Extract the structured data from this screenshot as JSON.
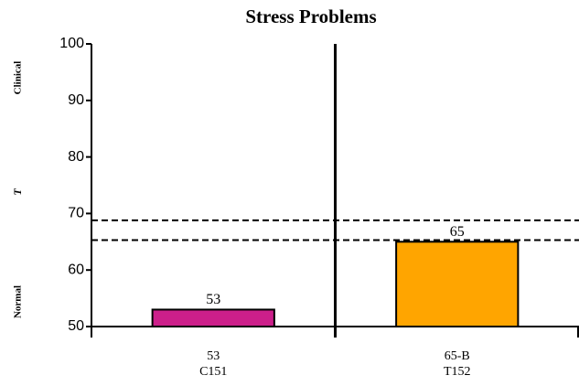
{
  "chart_data": {
    "type": "bar",
    "title": "Stress Problems",
    "y_side_labels": [
      "Clinical",
      "T",
      "Normal"
    ],
    "categories": [
      "C151",
      "T152"
    ],
    "category_scores": [
      "53",
      "65-B"
    ],
    "values": [
      53,
      65
    ],
    "colors": [
      "#cc1f8a",
      "#ffa500"
    ],
    "ylim": [
      50,
      100
    ],
    "yticks": [
      50,
      60,
      70,
      80,
      90,
      100
    ],
    "reference_lines": [
      65.3,
      68.8
    ]
  }
}
